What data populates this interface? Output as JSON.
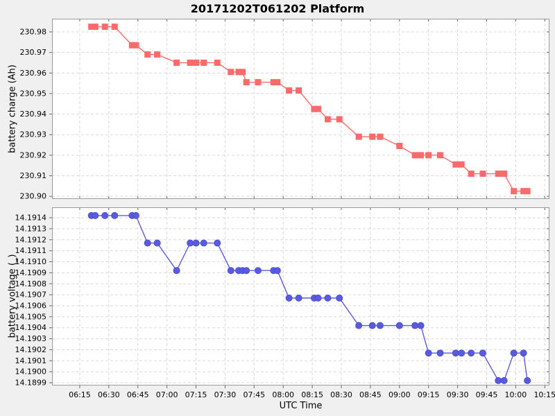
{
  "title": "20171202T061202 Platform",
  "x_axis": {
    "label": "UTC Time",
    "tick_labels": [
      "06:15",
      "06:30",
      "06:45",
      "07:00",
      "07:15",
      "07:30",
      "07:45",
      "08:00",
      "08:15",
      "08:30",
      "08:45",
      "09:00",
      "09:15",
      "09:30",
      "09:45",
      "10:00",
      "10:15"
    ],
    "tick_minutes": [
      375,
      390,
      405,
      420,
      435,
      450,
      465,
      480,
      495,
      510,
      525,
      540,
      555,
      570,
      585,
      600,
      615
    ],
    "xlim_minutes": [
      360.7,
      617.4
    ]
  },
  "colors": {
    "figure_bg": "#f0f0f0",
    "plot_bg": "#ffffff",
    "grid": "#d9d9d9",
    "box": "#999999",
    "tick": "#666666",
    "charge_series": "#f96a6a",
    "voltage_series": "#5a5ae1",
    "voltage_marker_edge": "#4949d0"
  },
  "chart_data": [
    {
      "type": "line",
      "series_name": "battery-charge",
      "ylabel": "battery charge (Ah)",
      "marker": "square",
      "color": "#f96a6a",
      "grid": true,
      "legend": "none",
      "ylim": [
        230.8987,
        230.9864
      ],
      "ytick_values": [
        230.9,
        230.91,
        230.92,
        230.93,
        230.94,
        230.95,
        230.96,
        230.97,
        230.98
      ],
      "ytick_labels": [
        "230.90",
        "230.91",
        "230.92",
        "230.93",
        "230.94",
        "230.95",
        "230.96",
        "230.97",
        "230.98"
      ],
      "x_minutes": [
        381,
        383,
        388,
        393,
        402,
        404,
        410,
        415,
        425,
        432,
        435,
        439,
        446,
        453,
        457,
        459,
        461,
        467,
        475,
        477,
        483,
        488,
        496,
        498,
        503,
        509,
        519,
        526,
        530,
        540,
        548,
        551,
        555,
        561,
        569,
        572,
        577,
        583,
        591,
        594,
        599,
        604,
        606
      ],
      "values": [
        230.9825,
        230.9825,
        230.9825,
        230.9825,
        230.9735,
        230.9735,
        230.969,
        230.969,
        230.965,
        230.965,
        230.965,
        230.965,
        230.965,
        230.9605,
        230.9605,
        230.9605,
        230.9555,
        230.9555,
        230.9555,
        230.9555,
        230.9515,
        230.9515,
        230.9425,
        230.9425,
        230.9375,
        230.9375,
        230.929,
        230.929,
        230.929,
        230.9245,
        230.92,
        230.92,
        230.92,
        230.92,
        230.9155,
        230.9155,
        230.911,
        230.911,
        230.911,
        230.911,
        230.9025,
        230.9025,
        230.9025
      ]
    },
    {
      "type": "line",
      "series_name": "battery-voltage",
      "ylabel": "battery voltage (_)",
      "xlabel": "UTC Time",
      "marker": "circle",
      "color": "#5a5ae1",
      "grid": true,
      "legend": "none",
      "ylim": [
        14.189875,
        14.191495
      ],
      "ytick_values": [
        14.1899,
        14.19,
        14.1901,
        14.1902,
        14.1903,
        14.1904,
        14.1905,
        14.1906,
        14.1907,
        14.1908,
        14.1909,
        14.191,
        14.1911,
        14.1912,
        14.1913,
        14.1914
      ],
      "ytick_labels": [
        "14.1899",
        "14.1900",
        "14.1901",
        "14.1902",
        "14.1903",
        "14.1904",
        "14.1905",
        "14.1906",
        "14.1907",
        "14.1908",
        "14.1909",
        "14.1910",
        "14.1911",
        "14.1912",
        "14.1913",
        "14.1914"
      ],
      "x_minutes": [
        381,
        383,
        388,
        393,
        402,
        404,
        410,
        415,
        425,
        432,
        435,
        439,
        446,
        453,
        457,
        459,
        461,
        467,
        475,
        477,
        483,
        488,
        496,
        498,
        503,
        509,
        519,
        526,
        530,
        540,
        548,
        551,
        555,
        561,
        569,
        572,
        577,
        583,
        591,
        594,
        599,
        604,
        606
      ],
      "values": [
        14.19142,
        14.19142,
        14.19142,
        14.19142,
        14.19142,
        14.19142,
        14.19117,
        14.19117,
        14.19092,
        14.19117,
        14.19117,
        14.19117,
        14.19117,
        14.19092,
        14.19092,
        14.19092,
        14.19092,
        14.19092,
        14.19092,
        14.19092,
        14.19067,
        14.19067,
        14.19067,
        14.19067,
        14.19067,
        14.19067,
        14.19042,
        14.19042,
        14.19042,
        14.19042,
        14.19042,
        14.19042,
        14.19017,
        14.19017,
        14.19017,
        14.19017,
        14.19017,
        14.19017,
        14.18992,
        14.18992,
        14.19017,
        14.19017,
        14.18992
      ]
    }
  ]
}
